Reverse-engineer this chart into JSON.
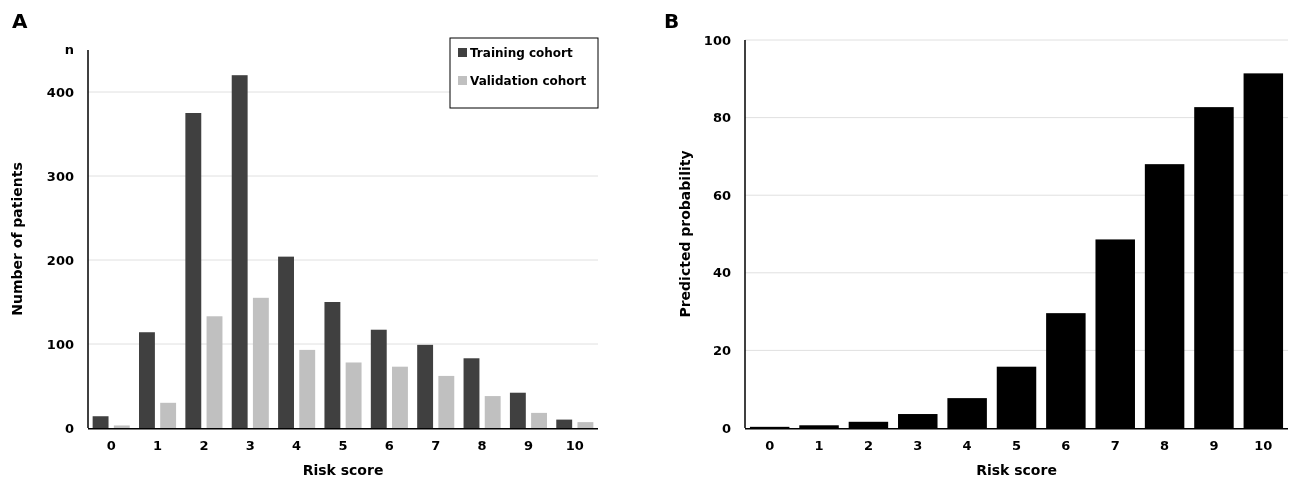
{
  "chart_data": [
    {
      "type": "bar",
      "title": "A",
      "xlabel": "Risk score",
      "ylabel": "Number of patients",
      "annotations": [
        "n"
      ],
      "categories": [
        "0",
        "1",
        "2",
        "3",
        "4",
        "5",
        "6",
        "7",
        "8",
        "9",
        "10"
      ],
      "series": [
        {
          "name": "Training cohort",
          "color": "#404040",
          "values": [
            14,
            114,
            375,
            420,
            204,
            150,
            117,
            99,
            83,
            42,
            10
          ]
        },
        {
          "name": "Validation cohort",
          "color": "#c0c0c0",
          "values": [
            3,
            30,
            133,
            155,
            93,
            78,
            73,
            62,
            38,
            18,
            7
          ]
        }
      ],
      "ylim": [
        0,
        450
      ],
      "yticks": [
        0,
        100,
        200,
        300,
        400
      ],
      "grid": "y",
      "legend": "top right"
    },
    {
      "type": "bar",
      "title": "B",
      "xlabel": "Risk score",
      "ylabel": "Predicted probability",
      "categories": [
        "0",
        "1",
        "2",
        "3",
        "4",
        "5",
        "6",
        "7",
        "8",
        "9",
        "10"
      ],
      "series": [
        {
          "color": "#000000",
          "values": [
            0.3,
            0.7,
            1.6,
            3.6,
            7.7,
            15.8,
            29.6,
            48.6,
            68,
            82.7,
            91.4
          ]
        }
      ],
      "ylim": [
        0,
        100
      ],
      "yticks": [
        0,
        20,
        40,
        60,
        80,
        100
      ],
      "grid": "y"
    }
  ]
}
